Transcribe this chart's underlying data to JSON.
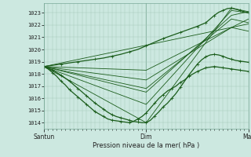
{
  "title": "",
  "xlabel": "Pression niveau de la mer( hPa )",
  "ylabel": "",
  "background_color": "#cce8e0",
  "grid_color": "#aaccbb",
  "line_color": "#1a5c1a",
  "xlim": [
    0,
    48
  ],
  "ylim": [
    1013.5,
    1023.8
  ],
  "yticks": [
    1014,
    1015,
    1016,
    1017,
    1018,
    1019,
    1020,
    1021,
    1022,
    1023
  ],
  "xtick_positions": [
    0,
    24,
    48
  ],
  "xtick_labels": [
    "Santun",
    "Dim",
    "Mar"
  ],
  "fan_lines": [
    {
      "x": [
        0,
        48
      ],
      "y": [
        1018.6,
        1022.1
      ]
    },
    {
      "x": [
        0,
        24,
        48
      ],
      "y": [
        1018.6,
        1018.3,
        1022.5
      ]
    },
    {
      "x": [
        0,
        24,
        44,
        48
      ],
      "y": [
        1018.6,
        1016.5,
        1022.8,
        1023.1
      ]
    },
    {
      "x": [
        0,
        24,
        44,
        48
      ],
      "y": [
        1018.6,
        1015.5,
        1023.2,
        1023.0
      ]
    },
    {
      "x": [
        0,
        24,
        44,
        48
      ],
      "y": [
        1018.6,
        1014.0,
        1023.4,
        1023.1
      ]
    },
    {
      "x": [
        0,
        24,
        44,
        48
      ],
      "y": [
        1018.6,
        1016.8,
        1022.5,
        1022.2
      ]
    },
    {
      "x": [
        0,
        24,
        44,
        48
      ],
      "y": [
        1018.6,
        1017.5,
        1021.8,
        1021.5
      ]
    }
  ],
  "main_line_x": [
    0,
    1,
    2,
    3,
    4,
    5,
    6,
    7,
    8,
    9,
    10,
    11,
    12,
    13,
    14,
    15,
    16,
    17,
    18,
    19,
    20,
    21,
    22,
    23,
    24,
    25,
    26,
    27,
    28,
    29,
    30,
    31,
    32,
    33,
    34,
    35,
    36,
    37,
    38,
    39,
    40,
    41,
    42,
    43,
    44,
    45,
    46,
    47,
    48
  ],
  "main_line_y": [
    1018.6,
    1018.4,
    1018.1,
    1017.8,
    1017.4,
    1017.1,
    1016.7,
    1016.4,
    1016.1,
    1015.8,
    1015.5,
    1015.2,
    1014.9,
    1014.7,
    1014.5,
    1014.3,
    1014.2,
    1014.15,
    1014.1,
    1014.05,
    1014.0,
    1014.1,
    1014.3,
    1014.5,
    1014.8,
    1015.2,
    1015.6,
    1016.0,
    1016.3,
    1016.6,
    1016.8,
    1017.0,
    1017.3,
    1017.5,
    1017.8,
    1018.0,
    1018.2,
    1018.35,
    1018.5,
    1018.55,
    1018.6,
    1018.55,
    1018.5,
    1018.45,
    1018.4,
    1018.35,
    1018.3,
    1018.25,
    1018.2
  ],
  "detailed_line_x": [
    0,
    1,
    2,
    3,
    4,
    5,
    6,
    7,
    8,
    9,
    10,
    11,
    12,
    13,
    14,
    15,
    16,
    17,
    18,
    19,
    20,
    21,
    22,
    23,
    24,
    25,
    26,
    27,
    28,
    29,
    30,
    31,
    32,
    33,
    34,
    35,
    36,
    37,
    38,
    39,
    40,
    41,
    42,
    43,
    44,
    45,
    46,
    47,
    48
  ],
  "detailed_line_y": [
    1018.6,
    1018.45,
    1018.3,
    1018.1,
    1017.9,
    1017.65,
    1017.4,
    1017.1,
    1016.8,
    1016.5,
    1016.2,
    1015.9,
    1015.6,
    1015.35,
    1015.1,
    1014.85,
    1014.65,
    1014.5,
    1014.4,
    1014.3,
    1014.2,
    1014.1,
    1014.05,
    1014.0,
    1014.0,
    1014.2,
    1014.55,
    1014.9,
    1015.3,
    1015.6,
    1016.0,
    1016.4,
    1016.9,
    1017.4,
    1017.9,
    1018.35,
    1018.8,
    1019.15,
    1019.4,
    1019.55,
    1019.6,
    1019.55,
    1019.45,
    1019.3,
    1019.2,
    1019.1,
    1019.05,
    1019.0,
    1018.95
  ],
  "upper_line_x": [
    0,
    2,
    4,
    6,
    8,
    10,
    12,
    14,
    16,
    18,
    20,
    22,
    24,
    26,
    28,
    30,
    32,
    34,
    36,
    37,
    38,
    39,
    40,
    41,
    42,
    43,
    44,
    45,
    46,
    47,
    48
  ],
  "upper_line_y": [
    1018.6,
    1018.7,
    1018.8,
    1018.9,
    1019.0,
    1019.1,
    1019.2,
    1019.3,
    1019.45,
    1019.6,
    1019.8,
    1020.0,
    1020.3,
    1020.6,
    1020.9,
    1021.15,
    1021.4,
    1021.65,
    1021.9,
    1022.05,
    1022.2,
    1022.5,
    1022.8,
    1023.05,
    1023.2,
    1023.35,
    1023.4,
    1023.3,
    1023.2,
    1023.1,
    1023.0
  ]
}
